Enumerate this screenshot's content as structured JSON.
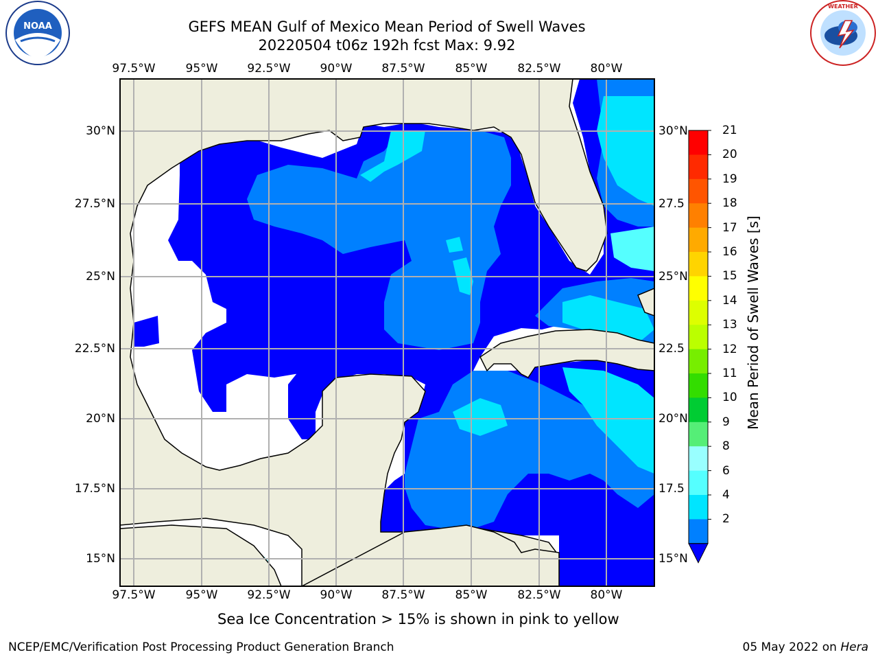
{
  "title_line1": "GEFS MEAN Gulf of Mexico Mean Period of Swell Waves",
  "title_line2": "20220504 t06z 192h fcst   Max: 9.92",
  "footnote": "Sea Ice Concentration > 15% is shown in pink to yellow",
  "credit": "NCEP/EMC/Verification Post Processing Product Generation Branch",
  "date_text": "05 May 2022 on ",
  "machine": "Hera",
  "colorbar": {
    "label": "Mean Period of Swell Waves [s]",
    "ticks": [
      "21",
      "20",
      "19",
      "18",
      "17",
      "16",
      "15",
      "14",
      "13",
      "12",
      "11",
      "10",
      "9",
      "8",
      "6",
      "4",
      "2"
    ],
    "colors": [
      "#ff0000",
      "#ff2a00",
      "#ff5500",
      "#ff8000",
      "#ffaa00",
      "#ffd400",
      "#ffff00",
      "#ddff00",
      "#bbff00",
      "#77ee00",
      "#33dd00",
      "#00cc33",
      "#55ee77",
      "#99ffff",
      "#55ffff",
      "#00e5ff",
      "#0080ff"
    ],
    "extend_color": "#0000ff"
  },
  "map": {
    "lon_labels_top": [
      "97.5°W",
      "95°W",
      "92.5°W",
      "90°W",
      "87.5°W",
      "85°W",
      "82.5°W",
      "80°W"
    ],
    "lon_labels_bottom": [
      "97.5°W",
      "95°W",
      "92.5°W",
      "90°W",
      "87.5°W",
      "85°W",
      "82.5°W",
      "80°W"
    ],
    "lat_labels_left": [
      "30°N",
      "27.5°N",
      "25°N",
      "22.5°N",
      "20°N",
      "17.5°N",
      "15°N"
    ],
    "lat_labels_right": [
      "30°N",
      "27.5",
      "25°N",
      "22.5",
      "20°N",
      "17.5",
      "15°N"
    ],
    "land_color": "#eeeedd",
    "grid_color": "#b0b0b0"
  }
}
